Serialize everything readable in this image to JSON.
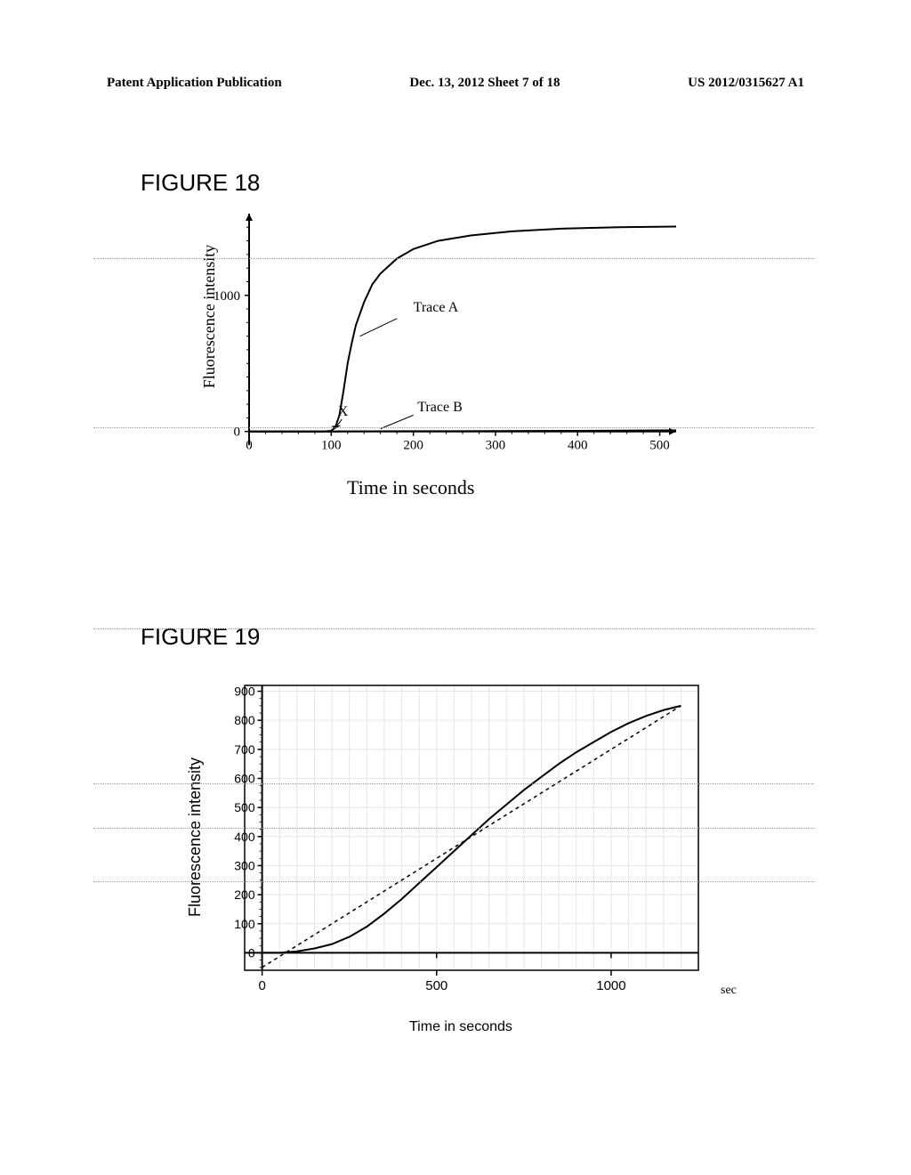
{
  "header": {
    "left": "Patent Application Publication",
    "center": "Dec. 13, 2012  Sheet 7 of 18",
    "right": "US 2012/0315627 A1"
  },
  "figure18": {
    "title": "FIGURE 18",
    "type": "line",
    "ylabel": "Fluorescence intensity",
    "ylabel_fontsize": 18,
    "xlabel": "Time in seconds",
    "xlabel_fontsize": 22,
    "yticks": [
      0,
      1000
    ],
    "ytick_fontsize": 15,
    "xticks": [
      0,
      100,
      200,
      300,
      400,
      500
    ],
    "xtick_fontsize": 15,
    "xlim": [
      0,
      520
    ],
    "ylim": [
      -100,
      1600
    ],
    "annotations": {
      "traceA": "Trace A",
      "traceB": "Trace B",
      "X": "X"
    },
    "traceA_data": [
      [
        0,
        0
      ],
      [
        50,
        0
      ],
      [
        90,
        0
      ],
      [
        100,
        5
      ],
      [
        105,
        30
      ],
      [
        110,
        120
      ],
      [
        115,
        300
      ],
      [
        120,
        500
      ],
      [
        125,
        650
      ],
      [
        130,
        780
      ],
      [
        140,
        950
      ],
      [
        150,
        1080
      ],
      [
        160,
        1160
      ],
      [
        180,
        1270
      ],
      [
        200,
        1340
      ],
      [
        230,
        1400
      ],
      [
        270,
        1440
      ],
      [
        320,
        1470
      ],
      [
        380,
        1490
      ],
      [
        450,
        1500
      ],
      [
        520,
        1505
      ]
    ],
    "traceB_data": [
      [
        0,
        0
      ],
      [
        100,
        0
      ],
      [
        200,
        2
      ],
      [
        300,
        3
      ],
      [
        400,
        5
      ],
      [
        500,
        8
      ],
      [
        520,
        8
      ]
    ],
    "line_color": "#000000",
    "line_width": 2,
    "background_color": "#ffffff",
    "axis_color": "#000000"
  },
  "figure19": {
    "title": "FIGURE 19",
    "type": "line",
    "ylabel": "Fluorescence intensity",
    "ylabel_fontsize": 18,
    "xlabel": "Time in seconds",
    "xlabel_fontsize": 16,
    "xlabel_unit": "sec",
    "yticks": [
      0,
      100,
      200,
      300,
      400,
      500,
      600,
      700,
      800,
      900
    ],
    "ytick_fontsize": 14,
    "xticks": [
      0,
      500,
      1000
    ],
    "xtick_fontsize": 15,
    "xlim": [
      -50,
      1250
    ],
    "ylim": [
      -60,
      920
    ],
    "solid_data": [
      [
        0,
        0
      ],
      [
        50,
        0
      ],
      [
        100,
        5
      ],
      [
        150,
        15
      ],
      [
        200,
        30
      ],
      [
        250,
        55
      ],
      [
        300,
        90
      ],
      [
        350,
        135
      ],
      [
        400,
        185
      ],
      [
        450,
        240
      ],
      [
        500,
        295
      ],
      [
        550,
        350
      ],
      [
        600,
        405
      ],
      [
        650,
        460
      ],
      [
        700,
        510
      ],
      [
        750,
        560
      ],
      [
        800,
        605
      ],
      [
        850,
        650
      ],
      [
        900,
        690
      ],
      [
        950,
        725
      ],
      [
        1000,
        760
      ],
      [
        1050,
        790
      ],
      [
        1100,
        815
      ],
      [
        1150,
        835
      ],
      [
        1200,
        850
      ]
    ],
    "dashed_data": [
      [
        0,
        -50
      ],
      [
        1200,
        850
      ]
    ],
    "line_color": "#000000",
    "line_width": 2,
    "dash_pattern": "4,4",
    "background_color": "#ffffff",
    "grid_color": "#e5e5e5",
    "axis_color": "#000000"
  },
  "dotted_lines_y": [
    290,
    480,
    706,
    880,
    930,
    990
  ]
}
